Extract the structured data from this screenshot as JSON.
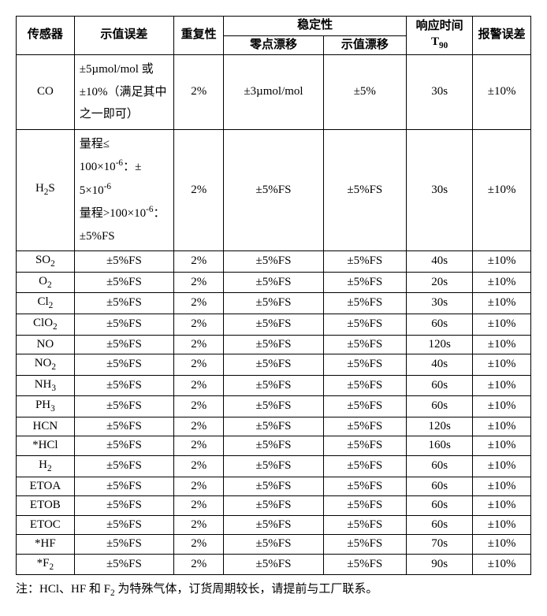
{
  "headers": {
    "sensor": "传感器",
    "indication_error": "示值误差",
    "repeatability": "重复性",
    "stability": "稳定性",
    "zero_drift": "零点漂移",
    "value_drift": "示值漂移",
    "response_time_pre": "响应时间 T",
    "response_time_sub": "90",
    "alarm_error": "报警误差"
  },
  "rows": [
    {
      "sensor_html": "CO",
      "err_html": "±5µmol/mol 或±10%（满足其中之一即可）",
      "err_left": true,
      "rep": "2%",
      "zero": "±3µmol/mol",
      "drift": "±5%",
      "resp": "30s",
      "alarm": "±10%"
    },
    {
      "sensor_html": "H<sub>2</sub>S",
      "err_html": "量程≤<br>100×10<sup>-6</sup>：±<br>5×10<sup>-6</sup><br>量程>100×10<sup>-6</sup>：±5%FS",
      "err_left": true,
      "rep": "2%",
      "zero": "±5%FS",
      "drift": "±5%FS",
      "resp": "30s",
      "alarm": "±10%"
    },
    {
      "sensor_html": "SO<sub>2</sub>",
      "err_html": "±5%FS",
      "rep": "2%",
      "zero": "±5%FS",
      "drift": "±5%FS",
      "resp": "40s",
      "alarm": "±10%"
    },
    {
      "sensor_html": "O<sub>2</sub>",
      "err_html": "±5%FS",
      "rep": "2%",
      "zero": "±5%FS",
      "drift": "±5%FS",
      "resp": "20s",
      "alarm": "±10%"
    },
    {
      "sensor_html": "Cl<sub>2</sub>",
      "err_html": "±5%FS",
      "rep": "2%",
      "zero": "±5%FS",
      "drift": "±5%FS",
      "resp": "30s",
      "alarm": "±10%"
    },
    {
      "sensor_html": "ClO<sub>2</sub>",
      "err_html": "±5%FS",
      "rep": "2%",
      "zero": "±5%FS",
      "drift": "±5%FS",
      "resp": "60s",
      "alarm": "±10%"
    },
    {
      "sensor_html": "NO",
      "err_html": "±5%FS",
      "rep": "2%",
      "zero": "±5%FS",
      "drift": "±5%FS",
      "resp": "120s",
      "alarm": "±10%"
    },
    {
      "sensor_html": "NO<sub>2</sub>",
      "err_html": "±5%FS",
      "rep": "2%",
      "zero": "±5%FS",
      "drift": "±5%FS",
      "resp": "40s",
      "alarm": "±10%"
    },
    {
      "sensor_html": "NH<sub>3</sub>",
      "err_html": "±5%FS",
      "rep": "2%",
      "zero": "±5%FS",
      "drift": "±5%FS",
      "resp": "60s",
      "alarm": "±10%"
    },
    {
      "sensor_html": "PH<sub>3</sub>",
      "err_html": "±5%FS",
      "rep": "2%",
      "zero": "±5%FS",
      "drift": "±5%FS",
      "resp": "60s",
      "alarm": "±10%"
    },
    {
      "sensor_html": "HCN",
      "err_html": "±5%FS",
      "rep": "2%",
      "zero": "±5%FS",
      "drift": "±5%FS",
      "resp": "120s",
      "alarm": "±10%"
    },
    {
      "sensor_html": "*HCl",
      "err_html": "±5%FS",
      "rep": "2%",
      "zero": "±5%FS",
      "drift": "±5%FS",
      "resp": "160s",
      "alarm": "±10%"
    },
    {
      "sensor_html": "H<sub>2</sub>",
      "err_html": "±5%FS",
      "rep": "2%",
      "zero": "±5%FS",
      "drift": "±5%FS",
      "resp": "60s",
      "alarm": "±10%"
    },
    {
      "sensor_html": "ETOA",
      "err_html": "±5%FS",
      "rep": "2%",
      "zero": "±5%FS",
      "drift": "±5%FS",
      "resp": "60s",
      "alarm": "±10%"
    },
    {
      "sensor_html": "ETOB",
      "err_html": "±5%FS",
      "rep": "2%",
      "zero": "±5%FS",
      "drift": "±5%FS",
      "resp": "60s",
      "alarm": "±10%"
    },
    {
      "sensor_html": "ETOC",
      "err_html": "±5%FS",
      "rep": "2%",
      "zero": "±5%FS",
      "drift": "±5%FS",
      "resp": "60s",
      "alarm": "±10%"
    },
    {
      "sensor_html": "*HF",
      "err_html": "±5%FS",
      "rep": "2%",
      "zero": "±5%FS",
      "drift": "±5%FS",
      "resp": "70s",
      "alarm": "±10%"
    },
    {
      "sensor_html": "*F<sub>2</sub>",
      "err_html": "±5%FS",
      "rep": "2%",
      "zero": "±5%FS",
      "drift": "±5%FS",
      "resp": "90s",
      "alarm": "±10%"
    }
  ],
  "footnote_html": "注：HCl、HF 和 F<sub>2</sub> 为特殊气体，订货周期较长，请提前与工厂联系。"
}
